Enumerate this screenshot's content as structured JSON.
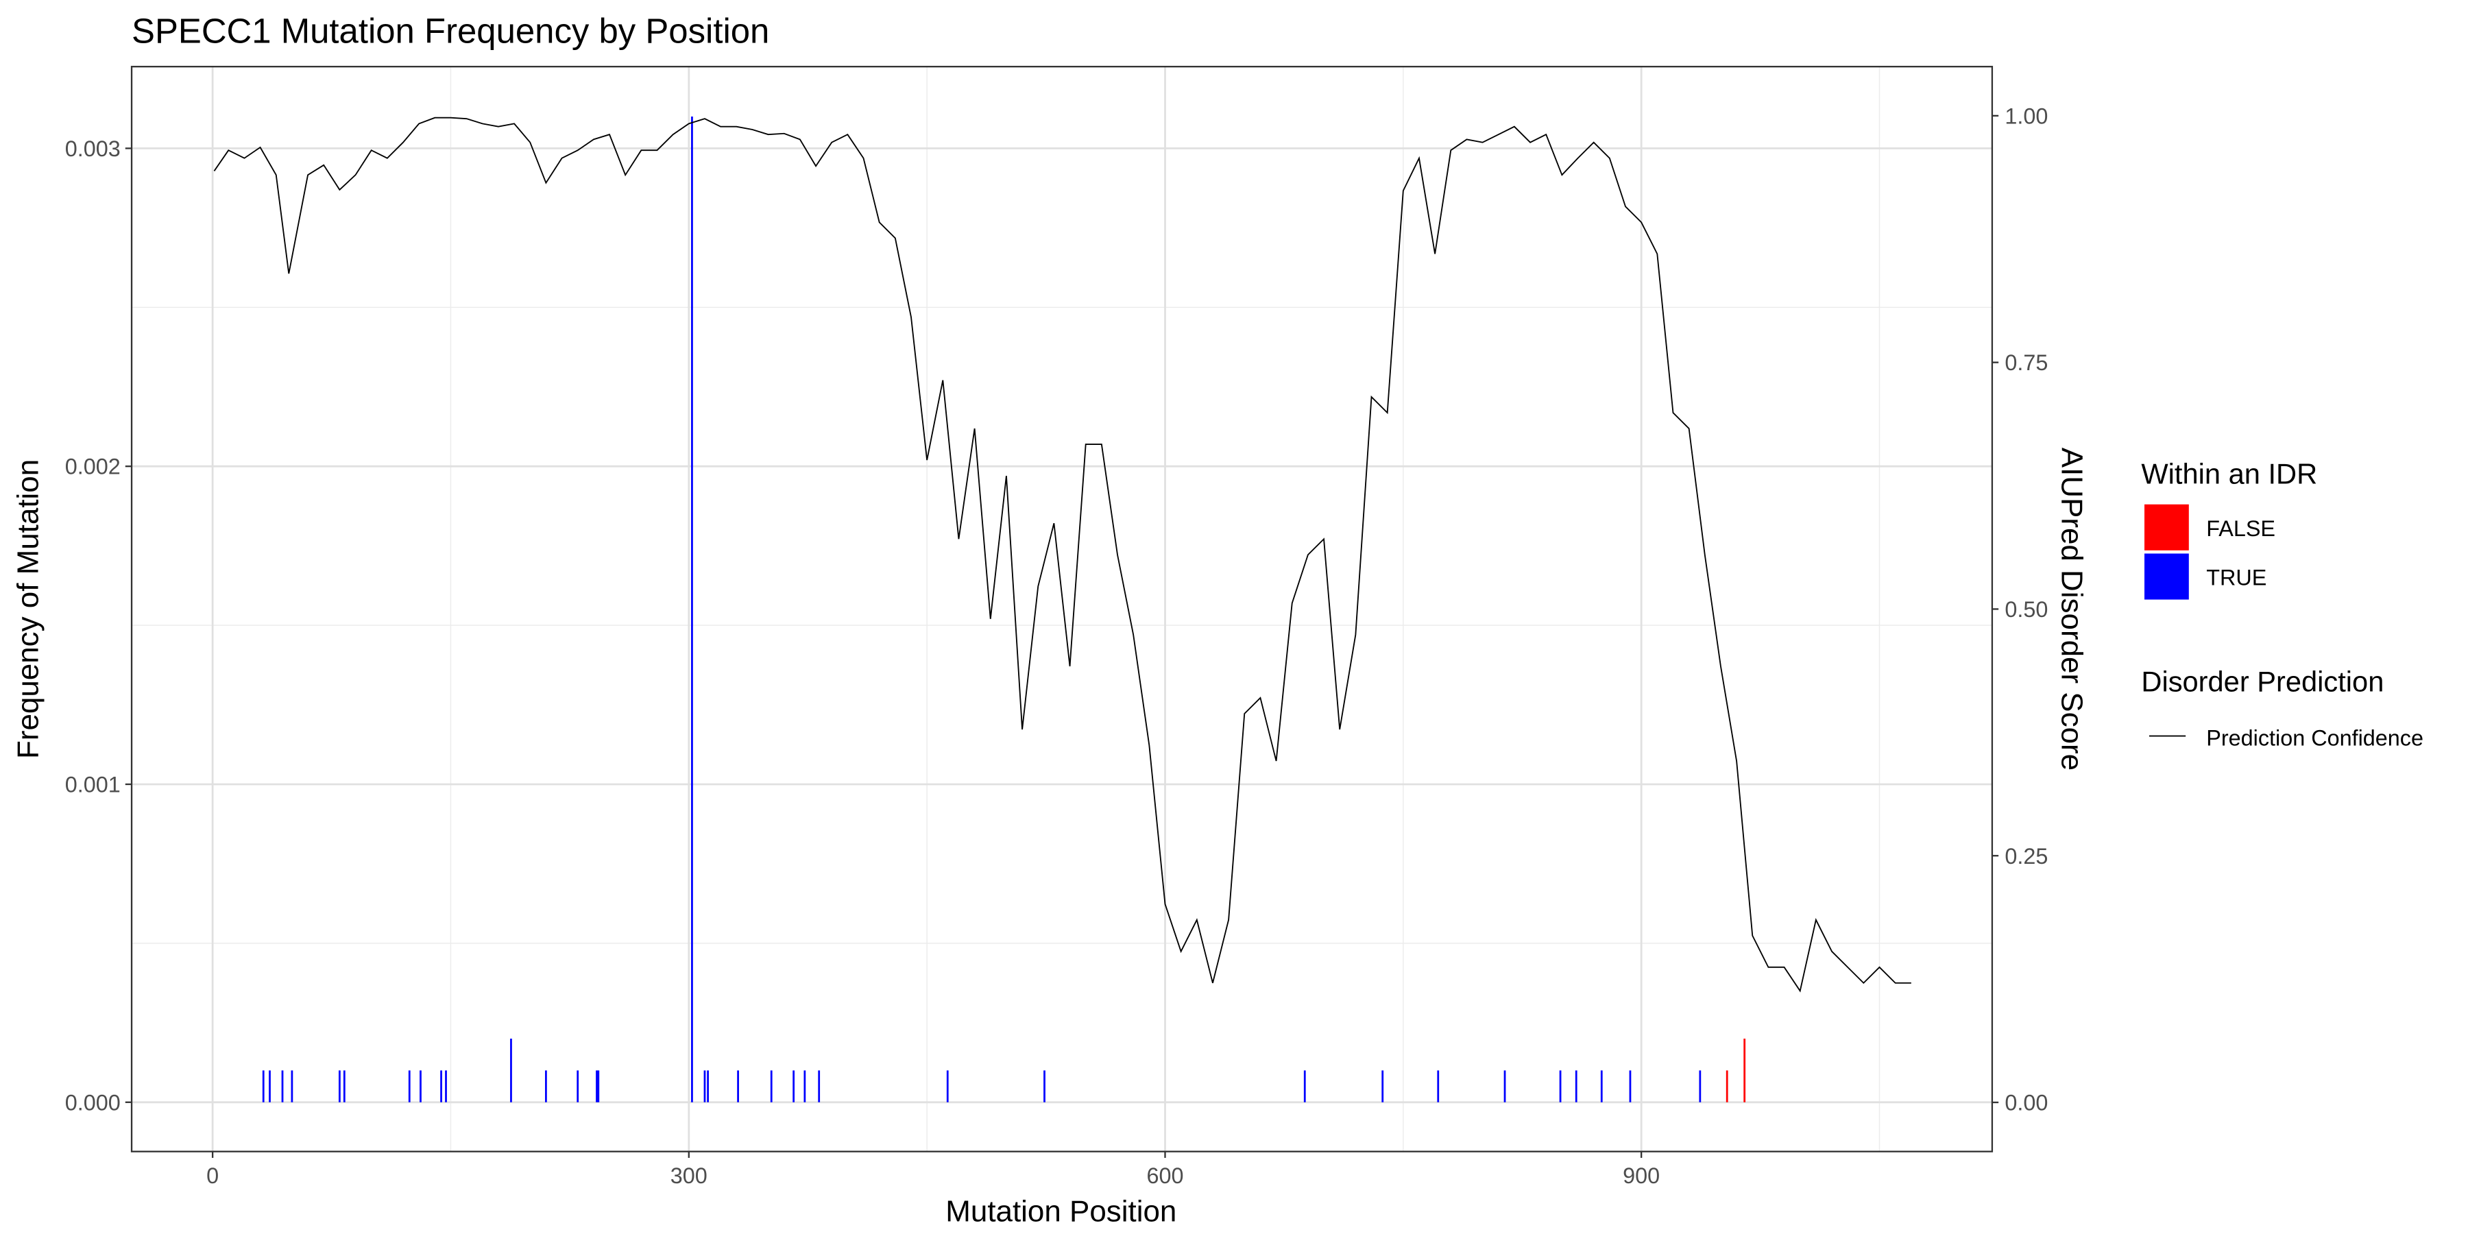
{
  "chart_data": {
    "type": "bar-line",
    "title": "SPECC1 Mutation Frequency by Position",
    "x_label": "Mutation Position",
    "y_label": "Frequency of Mutation",
    "y2_label": "AIUPred Disorder Score",
    "xlim": [
      -51,
      1121
    ],
    "xticks": [
      0,
      300,
      600,
      900
    ],
    "x_minor_grid": [
      150,
      450,
      750,
      1050
    ],
    "ylim": [
      -0.000155,
      0.003257
    ],
    "yticks": [
      {
        "value": 0,
        "label": "0.000"
      },
      {
        "value": 0.001,
        "label": "0.001"
      },
      {
        "value": 0.002,
        "label": "0.002"
      },
      {
        "value": 0.003,
        "label": "0.003"
      }
    ],
    "y_minor_grid": [
      0.0005,
      0.0015,
      0.0025
    ],
    "y2lim": [
      -0.0498,
      1.0498
    ],
    "y2ticks": [
      {
        "value": 0,
        "label": "0.00"
      },
      {
        "value": 0.25,
        "label": "0.25"
      },
      {
        "value": 0.5,
        "label": "0.50"
      },
      {
        "value": 0.75,
        "label": "0.75"
      },
      {
        "value": 1,
        "label": "1.00"
      }
    ],
    "grid": true,
    "legend_title": "Within an IDR",
    "line_legend_title": "Disorder Prediction",
    "series": [
      {
        "name": "FALSE",
        "color": "#ff0000",
        "x": [
          954,
          965
        ],
        "values": [
          0.0001,
          0.0002
        ]
      },
      {
        "name": "TRUE",
        "color": "#0000ff",
        "x": [
          32,
          36,
          44,
          50,
          80,
          83,
          124,
          131,
          144,
          147,
          188,
          210,
          230,
          242,
          243,
          302,
          310,
          312,
          331,
          352,
          366,
          373,
          382,
          463,
          524,
          688,
          737,
          772,
          814,
          849,
          859,
          875,
          893,
          937
        ],
        "values": [
          0.0001,
          0.0001,
          0.0001,
          0.0001,
          0.0001,
          0.0001,
          0.0001,
          0.0001,
          0.0001,
          0.0001,
          0.0002,
          0.0001,
          0.0001,
          0.0001,
          0.0001,
          0.0031,
          0.0001,
          0.0001,
          0.0001,
          0.0001,
          0.0001,
          0.0001,
          0.0001,
          0.0001,
          0.0001,
          0.0001,
          0.0001,
          0.0001,
          0.0001,
          0.0001,
          0.0001,
          0.0001,
          0.0001,
          0.0001
        ]
      },
      {
        "name": "Prediction Confidence",
        "color": "#000000",
        "axis": "y2",
        "x": [
          1,
          10,
          20,
          30,
          40,
          48,
          60,
          70,
          80,
          90,
          100,
          110,
          120,
          130,
          140,
          150,
          160,
          170,
          180,
          190,
          200,
          210,
          220,
          230,
          240,
          250,
          260,
          270,
          280,
          290,
          300,
          310,
          320,
          330,
          340,
          350,
          360,
          370,
          380,
          390,
          400,
          410,
          420,
          430,
          440,
          450,
          460,
          470,
          480,
          490,
          500,
          510,
          520,
          530,
          540,
          550,
          560,
          570,
          580,
          590,
          600,
          610,
          620,
          630,
          640,
          650,
          660,
          670,
          680,
          690,
          700,
          710,
          720,
          730,
          740,
          750,
          760,
          770,
          780,
          790,
          800,
          810,
          820,
          830,
          840,
          850,
          860,
          870,
          880,
          890,
          900,
          910,
          920,
          930,
          940,
          950,
          960,
          970,
          980,
          990,
          1000,
          1010,
          1020,
          1030,
          1040,
          1050,
          1060,
          1070
        ],
        "values": [
          0.944,
          0.965,
          0.957,
          0.968,
          0.94,
          0.84,
          0.94,
          0.95,
          0.925,
          0.94,
          0.965,
          0.957,
          0.973,
          0.992,
          0.998,
          0.998,
          0.997,
          0.992,
          0.989,
          0.992,
          0.973,
          0.932,
          0.957,
          0.965,
          0.976,
          0.981,
          0.94,
          0.965,
          0.965,
          0.981,
          0.992,
          0.997,
          0.989,
          0.989,
          0.986,
          0.981,
          0.982,
          0.976,
          0.949,
          0.973,
          0.981,
          0.957,
          0.892,
          0.876,
          0.796,
          0.651,
          0.732,
          0.571,
          0.683,
          0.49,
          0.635,
          0.378,
          0.523,
          0.587,
          0.442,
          0.667,
          0.667,
          0.555,
          0.474,
          0.362,
          0.201,
          0.153,
          0.185,
          0.121,
          0.185,
          0.394,
          0.41,
          0.346,
          0.506,
          0.555,
          0.571,
          0.378,
          0.474,
          0.715,
          0.699,
          0.924,
          0.957,
          0.86,
          0.965,
          0.976,
          0.973,
          0.981,
          0.989,
          0.973,
          0.981,
          0.94,
          0.957,
          0.973,
          0.957,
          0.908,
          0.892,
          0.86,
          0.699,
          0.683,
          0.555,
          0.442,
          0.346,
          0.169,
          0.137,
          0.137,
          0.113,
          0.185,
          0.153,
          0.137,
          0.121,
          0.137,
          0.121,
          0.121
        ]
      }
    ]
  }
}
